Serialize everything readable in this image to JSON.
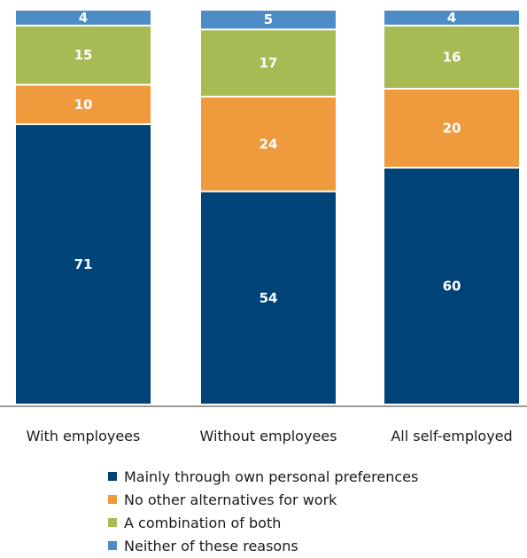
{
  "chart_data": {
    "type": "bar",
    "stacked": true,
    "categories": [
      "With employees",
      "Without employees",
      "All self-employed"
    ],
    "series": [
      {
        "name": "Mainly through own personal preferences",
        "values": [
          71,
          54,
          60
        ],
        "color": "#004379",
        "label_color": "#ffffff"
      },
      {
        "name": "No other alternatives for work",
        "values": [
          10,
          24,
          20
        ],
        "color": "#ef9a3d",
        "label_color": "#ffffff"
      },
      {
        "name": "A combination of both",
        "values": [
          15,
          17,
          16
        ],
        "color": "#a6bb53",
        "label_color": "#ffffff"
      },
      {
        "name": "Neither of these reasons",
        "values": [
          4,
          5,
          4
        ],
        "color": "#4e8cc6",
        "label_color": "#ffffff"
      }
    ],
    "ylim": [
      0,
      100
    ],
    "grid": false,
    "legend_position": "bottom"
  }
}
